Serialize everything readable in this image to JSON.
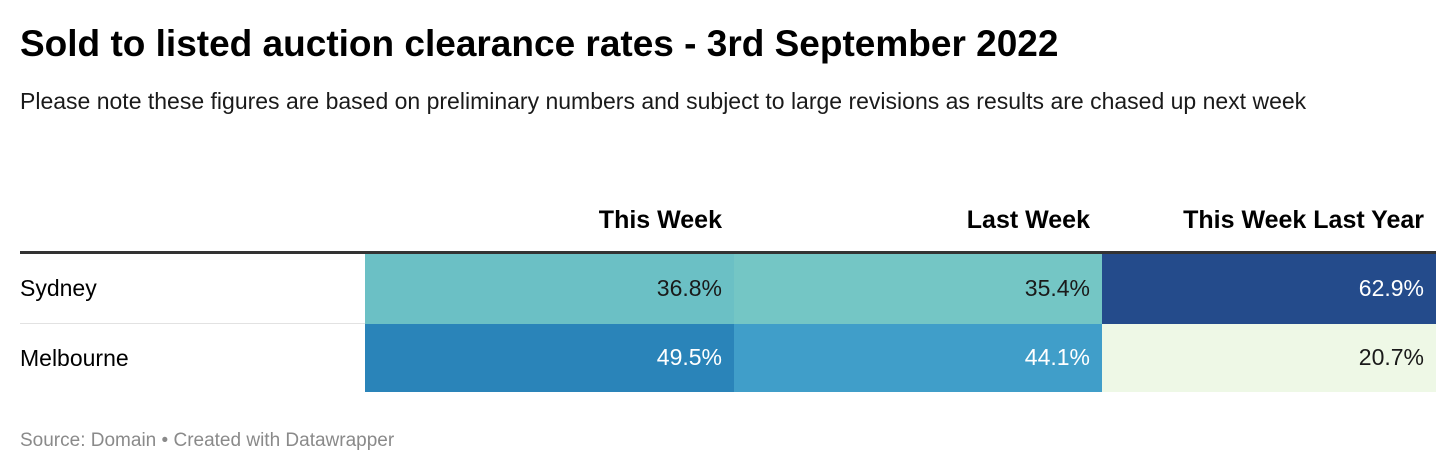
{
  "title": "Sold to listed auction clearance rates - 3rd September 2022",
  "subtitle": "Please note these figures are based on preliminary numbers and subject to large revisions as results are chased up next week",
  "footer": {
    "source_label": "Source:",
    "source": "Domain",
    "separator": "•",
    "credit": "Created with Datawrapper"
  },
  "chart_data": {
    "type": "table",
    "columns": [
      "",
      "This Week",
      "Last Week",
      "This Week Last Year"
    ],
    "rows": [
      {
        "label": "Sydney",
        "cells": [
          {
            "text": "36.8%",
            "value": 36.8,
            "bg": "#6bc0c5",
            "fg": "#1a1a1a"
          },
          {
            "text": "35.4%",
            "value": 35.4,
            "bg": "#74c6c5",
            "fg": "#1a1a1a"
          },
          {
            "text": "62.9%",
            "value": 62.9,
            "bg": "#244b8b",
            "fg": "#ffffff"
          }
        ]
      },
      {
        "label": "Melbourne",
        "cells": [
          {
            "text": "49.5%",
            "value": 49.5,
            "bg": "#2a84b9",
            "fg": "#ffffff"
          },
          {
            "text": "44.1%",
            "value": 44.1,
            "bg": "#409ec9",
            "fg": "#ffffff"
          },
          {
            "text": "20.7%",
            "value": 20.7,
            "bg": "#eef8e6",
            "fg": "#1a1a1a"
          }
        ]
      }
    ],
    "color_scale": [
      "#eef8e6",
      "#74c6c5",
      "#2a84b9",
      "#244b8b"
    ]
  }
}
